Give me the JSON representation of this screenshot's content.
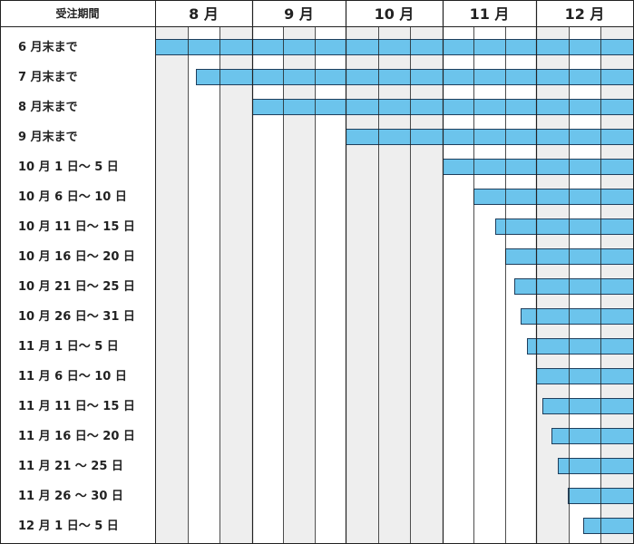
{
  "chart_data": {
    "type": "bar",
    "header": {
      "label": "受注期間",
      "months": [
        "8 月",
        "9 月",
        "10 月",
        "11 月",
        "12 月"
      ]
    },
    "categories": [
      "6 月末まで",
      "7 月末まで",
      "8 月末まで",
      "9 月末まで",
      "10 月 1 日～ 5 日",
      "10 月 6 日～ 10 日",
      "10 月 11 日～ 15 日",
      "10 月 16 日～ 20 日",
      "10 月 21 日～ 25 日",
      "10 月 26 日～ 31 日",
      "11 月 1 日～ 5 日",
      "11 月 6 日～ 10 日",
      "11 月 11 日～ 15 日",
      "11 月 16 日～ 20 日",
      "11 月 21 ～ 25 日",
      "11 月 26 ～ 30 日",
      "12 月 1 日～ 5 日"
    ],
    "bar_start_dates": [
      "2000-08-01",
      "2000-08-14",
      "2000-09-01",
      "2000-10-01",
      "2000-11-01",
      "2000-11-11",
      "2000-11-18",
      "2000-11-21",
      "2000-11-24",
      "2000-11-26",
      "2000-11-28",
      "2000-12-01",
      "2000-12-03",
      "2000-12-06",
      "2000-12-08",
      "2000-12-11",
      "2000-12-16"
    ],
    "x_range": [
      "2000-08-01",
      "2000-12-31"
    ],
    "colors": {
      "bar_fill": "#6cc4ec",
      "bar_stroke": "#1f3e5c",
      "shade": "#eeeeee",
      "grid": "#222222"
    }
  }
}
